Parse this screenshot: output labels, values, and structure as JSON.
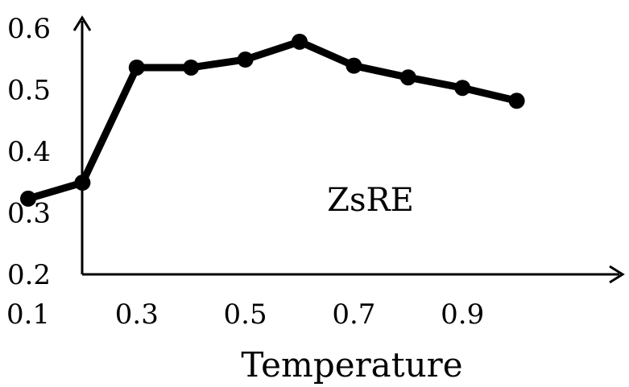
{
  "chart_data": {
    "type": "line",
    "title": "",
    "xlabel": "Temperature",
    "ylabel": "",
    "annotation": "ZsRE",
    "x": [
      0.1,
      0.2,
      0.3,
      0.4,
      0.5,
      0.6,
      0.7,
      0.8,
      0.9,
      1.0
    ],
    "series": [
      {
        "values": [
          0.323,
          0.349,
          0.536,
          0.536,
          0.549,
          0.578,
          0.539,
          0.52,
          0.503,
          0.482
        ]
      }
    ],
    "xticks": [
      "0.1",
      "0.3",
      "0.5",
      "0.7",
      "0.9"
    ],
    "yticks": [
      "0.2",
      "0.3",
      "0.4",
      "0.5",
      "0.6"
    ],
    "xlim": [
      0.0,
      1.05
    ],
    "ylim": [
      0.2,
      0.6
    ],
    "grid": false,
    "colors": {
      "line": "#000000",
      "axis": "#000000"
    }
  }
}
